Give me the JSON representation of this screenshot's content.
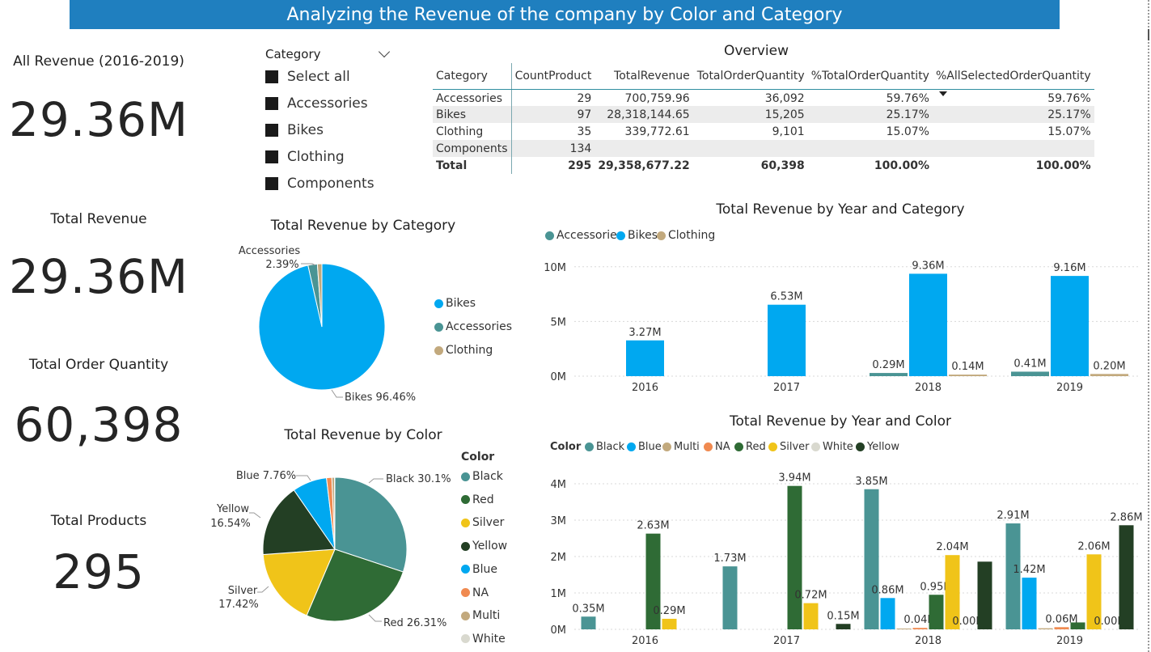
{
  "title": "Analyzing the Revenue of the company by Color and Category",
  "kpis": [
    {
      "label": "All Revenue (2016-2019)",
      "value": "29.36M"
    },
    {
      "label": "Total Revenue",
      "value": "29.36M"
    },
    {
      "label": "Total Order Quantity",
      "value": "60,398"
    },
    {
      "label": "Total Products",
      "value": "295"
    }
  ],
  "slicer": {
    "title": "Category",
    "items": [
      "Select all",
      "Accessories",
      "Bikes",
      "Clothing",
      "Components"
    ]
  },
  "overview": {
    "title": "Overview",
    "headers": [
      "Category",
      "CountProduct",
      "TotalRevenue",
      "TotalOrderQuantity",
      "%TotalOrderQuantity",
      "%AllSelectedOrderQuantity"
    ],
    "rows": [
      [
        "Accessories",
        "29",
        "700,759.96",
        "36,092",
        "59.76%",
        "59.76%"
      ],
      [
        "Bikes",
        "97",
        "28,318,144.65",
        "15,205",
        "25.17%",
        "25.17%"
      ],
      [
        "Clothing",
        "35",
        "339,772.61",
        "9,101",
        "15.07%",
        "15.07%"
      ],
      [
        "Components",
        "134",
        "",
        "",
        "",
        ""
      ]
    ],
    "total": [
      "Total",
      "295",
      "29,358,677.22",
      "60,398",
      "100.00%",
      "100.00%"
    ]
  },
  "colors": {
    "title_bar": "#1f7fbf",
    "teal": "#4a9494",
    "blue": "#00a8f0",
    "tan": "#c2a97d",
    "green": "#2f6b35",
    "yellow": "#f0c419",
    "dark_green": "#233f24",
    "orange": "#f08a50",
    "white_series": "#d9d9cf"
  },
  "charts": {
    "category_pie": {
      "title": "Total Revenue by Category",
      "legend": [
        "Bikes",
        "Accessories",
        "Clothing"
      ],
      "labels": {
        "accessories": "Accessories",
        "accessories_pct": "2.39%",
        "bikes": "Bikes 96.46%"
      }
    },
    "color_pie": {
      "title": "Total Revenue by Color",
      "legend_title": "Color",
      "legend": [
        "Black",
        "Red",
        "Silver",
        "Yellow",
        "Blue",
        "NA",
        "Multi",
        "White"
      ],
      "labels": {
        "black": "Black 30.1%",
        "red": "Red 26.31%",
        "silver": "Silver",
        "silver_pct": "17.42%",
        "yellow": "Yellow",
        "yellow_pct": "16.54%",
        "blue": "Blue 7.76%"
      }
    },
    "year_category": {
      "title": "Total Revenue by Year and Category",
      "legend": [
        "Accessories",
        "Bikes",
        "Clothing"
      ],
      "y_ticks": [
        "10M",
        "5M",
        "0M"
      ],
      "labels": {
        "y2016_bikes": "3.27M",
        "y2017_bikes": "6.53M",
        "y2018_acc": "0.29M",
        "y2018_bikes": "9.36M",
        "y2018_cloth": "0.14M",
        "y2019_acc": "0.41M",
        "y2019_bikes": "9.16M",
        "y2019_cloth": "0.20M"
      }
    },
    "year_color": {
      "title": "Total Revenue by Year and Color",
      "legend_title": "Color",
      "legend": [
        "Black",
        "Blue",
        "Multi",
        "NA",
        "Red",
        "Silver",
        "White",
        "Yellow"
      ],
      "y_ticks": [
        "4M",
        "3M",
        "2M",
        "1M",
        "0M"
      ],
      "labels": {
        "y2016_black": "0.35M",
        "y2016_red": "2.63M",
        "y2016_silver": "0.29M",
        "y2017_black": "1.73M",
        "y2017_red": "3.94M",
        "y2017_silver": "0.72M",
        "y2017_yellow": "0.15M",
        "y2018_black": "3.85M",
        "y2018_blue": "0.86M",
        "y2018_na": "0.04M",
        "y2018_red": "0.95M",
        "y2018_silver": "2.04M",
        "y2018_white": "0.00M",
        "y2019_black": "2.91M",
        "y2019_blue": "1.42M",
        "y2019_na": "0.06M",
        "y2019_silver": "2.06M",
        "y2019_white": "0.00M",
        "y2019_yellow": "2.86M"
      }
    }
  },
  "chart_data": [
    {
      "type": "pie",
      "title": "Total Revenue by Category",
      "categories": [
        "Bikes",
        "Accessories",
        "Clothing"
      ],
      "values": [
        96.46,
        2.39,
        1.16
      ]
    },
    {
      "type": "pie",
      "title": "Total Revenue by Color",
      "categories": [
        "Black",
        "Red",
        "Silver",
        "Yellow",
        "Blue",
        "NA",
        "Multi",
        "White"
      ],
      "values": [
        30.1,
        26.31,
        17.42,
        16.54,
        7.76,
        1.2,
        0.6,
        0.07
      ]
    },
    {
      "type": "bar",
      "title": "Total Revenue by Year and Category",
      "categories": [
        "2016",
        "2017",
        "2018",
        "2019"
      ],
      "series": [
        {
          "name": "Accessories",
          "values": [
            0,
            0,
            0.29,
            0.41
          ]
        },
        {
          "name": "Bikes",
          "values": [
            3.27,
            6.53,
            9.36,
            9.16
          ]
        },
        {
          "name": "Clothing",
          "values": [
            0,
            0,
            0.14,
            0.2
          ]
        }
      ],
      "ylim": [
        0,
        10.5
      ],
      "y_ticks": [
        0,
        5,
        10
      ],
      "legend": "top-left"
    },
    {
      "type": "bar",
      "title": "Total Revenue by Year and Color",
      "categories": [
        "2016",
        "2017",
        "2018",
        "2019"
      ],
      "series": [
        {
          "name": "Black",
          "values": [
            0.35,
            1.73,
            3.85,
            2.91
          ]
        },
        {
          "name": "Blue",
          "values": [
            0,
            0,
            0.86,
            1.42
          ]
        },
        {
          "name": "Multi",
          "values": [
            0,
            0,
            0.02,
            0.03
          ]
        },
        {
          "name": "NA",
          "values": [
            0,
            0,
            0.04,
            0.06
          ]
        },
        {
          "name": "Red",
          "values": [
            2.63,
            3.94,
            0.95,
            0.19
          ]
        },
        {
          "name": "Silver",
          "values": [
            0.29,
            0.72,
            2.04,
            2.06
          ]
        },
        {
          "name": "White",
          "values": [
            0,
            0,
            0.0,
            0.0
          ]
        },
        {
          "name": "Yellow",
          "values": [
            0,
            0.15,
            1.86,
            2.86
          ]
        }
      ],
      "ylim": [
        0,
        4.4
      ],
      "y_ticks": [
        0,
        1,
        2,
        3,
        4
      ],
      "legend": "top-left"
    }
  ]
}
